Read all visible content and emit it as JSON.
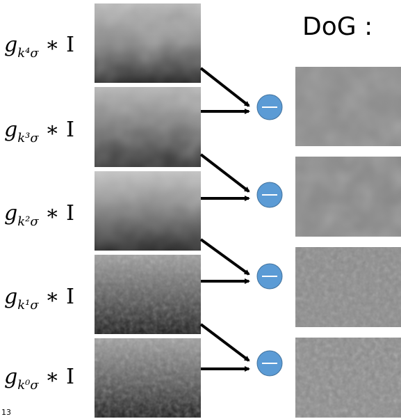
{
  "title": "DoG :",
  "page_number": "13",
  "labels": [
    {
      "base": "g",
      "sub": "k⁴σ",
      "rest": " ∗ I"
    },
    {
      "base": "g",
      "sub": "k³σ",
      "rest": " ∗ I"
    },
    {
      "base": "g",
      "sub": "k²σ",
      "rest": " ∗ I"
    },
    {
      "base": "g",
      "sub": "k¹σ",
      "rest": " ∗ I"
    },
    {
      "base": "g",
      "sub": "k⁰σ",
      "rest": " ∗ I"
    }
  ]
}
